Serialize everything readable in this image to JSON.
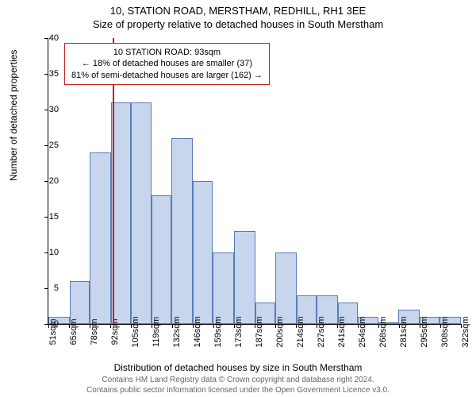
{
  "title_line1": "10, STATION ROAD, MERSTHAM, REDHILL, RH1 3EE",
  "title_line2": "Size of property relative to detached houses in South Merstham",
  "ylabel": "Number of detached properties",
  "xlabel": "Distribution of detached houses by size in South Merstham",
  "ylim": [
    0,
    40
  ],
  "yticks": [
    0,
    5,
    10,
    15,
    20,
    25,
    30,
    35,
    40
  ],
  "xticks_labels": [
    "51sqm",
    "65sqm",
    "78sqm",
    "92sqm",
    "105sqm",
    "119sqm",
    "132sqm",
    "146sqm",
    "159sqm",
    "173sqm",
    "187sqm",
    "200sqm",
    "214sqm",
    "227sqm",
    "241sqm",
    "254sqm",
    "268sqm",
    "281sqm",
    "295sqm",
    "308sqm",
    "322sqm"
  ],
  "bars": [
    {
      "x": 51,
      "w": 14,
      "v": 1
    },
    {
      "x": 65,
      "w": 13,
      "v": 6
    },
    {
      "x": 78,
      "w": 14,
      "v": 24
    },
    {
      "x": 92,
      "w": 13,
      "v": 31
    },
    {
      "x": 105,
      "w": 14,
      "v": 31
    },
    {
      "x": 119,
      "w": 13,
      "v": 18
    },
    {
      "x": 132,
      "w": 14,
      "v": 26
    },
    {
      "x": 146,
      "w": 13,
      "v": 20
    },
    {
      "x": 159,
      "w": 14,
      "v": 10
    },
    {
      "x": 173,
      "w": 14,
      "v": 13
    },
    {
      "x": 187,
      "w": 13,
      "v": 3
    },
    {
      "x": 200,
      "w": 14,
      "v": 10
    },
    {
      "x": 214,
      "w": 13,
      "v": 4
    },
    {
      "x": 227,
      "w": 14,
      "v": 4
    },
    {
      "x": 241,
      "w": 13,
      "v": 3
    },
    {
      "x": 254,
      "w": 14,
      "v": 1
    },
    {
      "x": 268,
      "w": 13,
      "v": 0
    },
    {
      "x": 281,
      "w": 14,
      "v": 2
    },
    {
      "x": 295,
      "w": 13,
      "v": 1
    },
    {
      "x": 308,
      "w": 14,
      "v": 1
    }
  ],
  "x_domain_min": 51,
  "x_domain_max": 322,
  "bar_fill": "#c7d5ed",
  "bar_stroke": "#5b7bb8",
  "marker_x": 93,
  "marker_color": "#c02020",
  "annotation": {
    "line1": "10 STATION ROAD: 93sqm",
    "line2": "← 18% of detached houses are smaller (37)",
    "line3": "81% of semi-detached houses are larger (162) →",
    "border_color": "#c02020"
  },
  "footer_line1": "Contains HM Land Registry data © Crown copyright and database right 2024.",
  "footer_line2": "Contains public sector information licensed under the Open Government Licence v3.0."
}
